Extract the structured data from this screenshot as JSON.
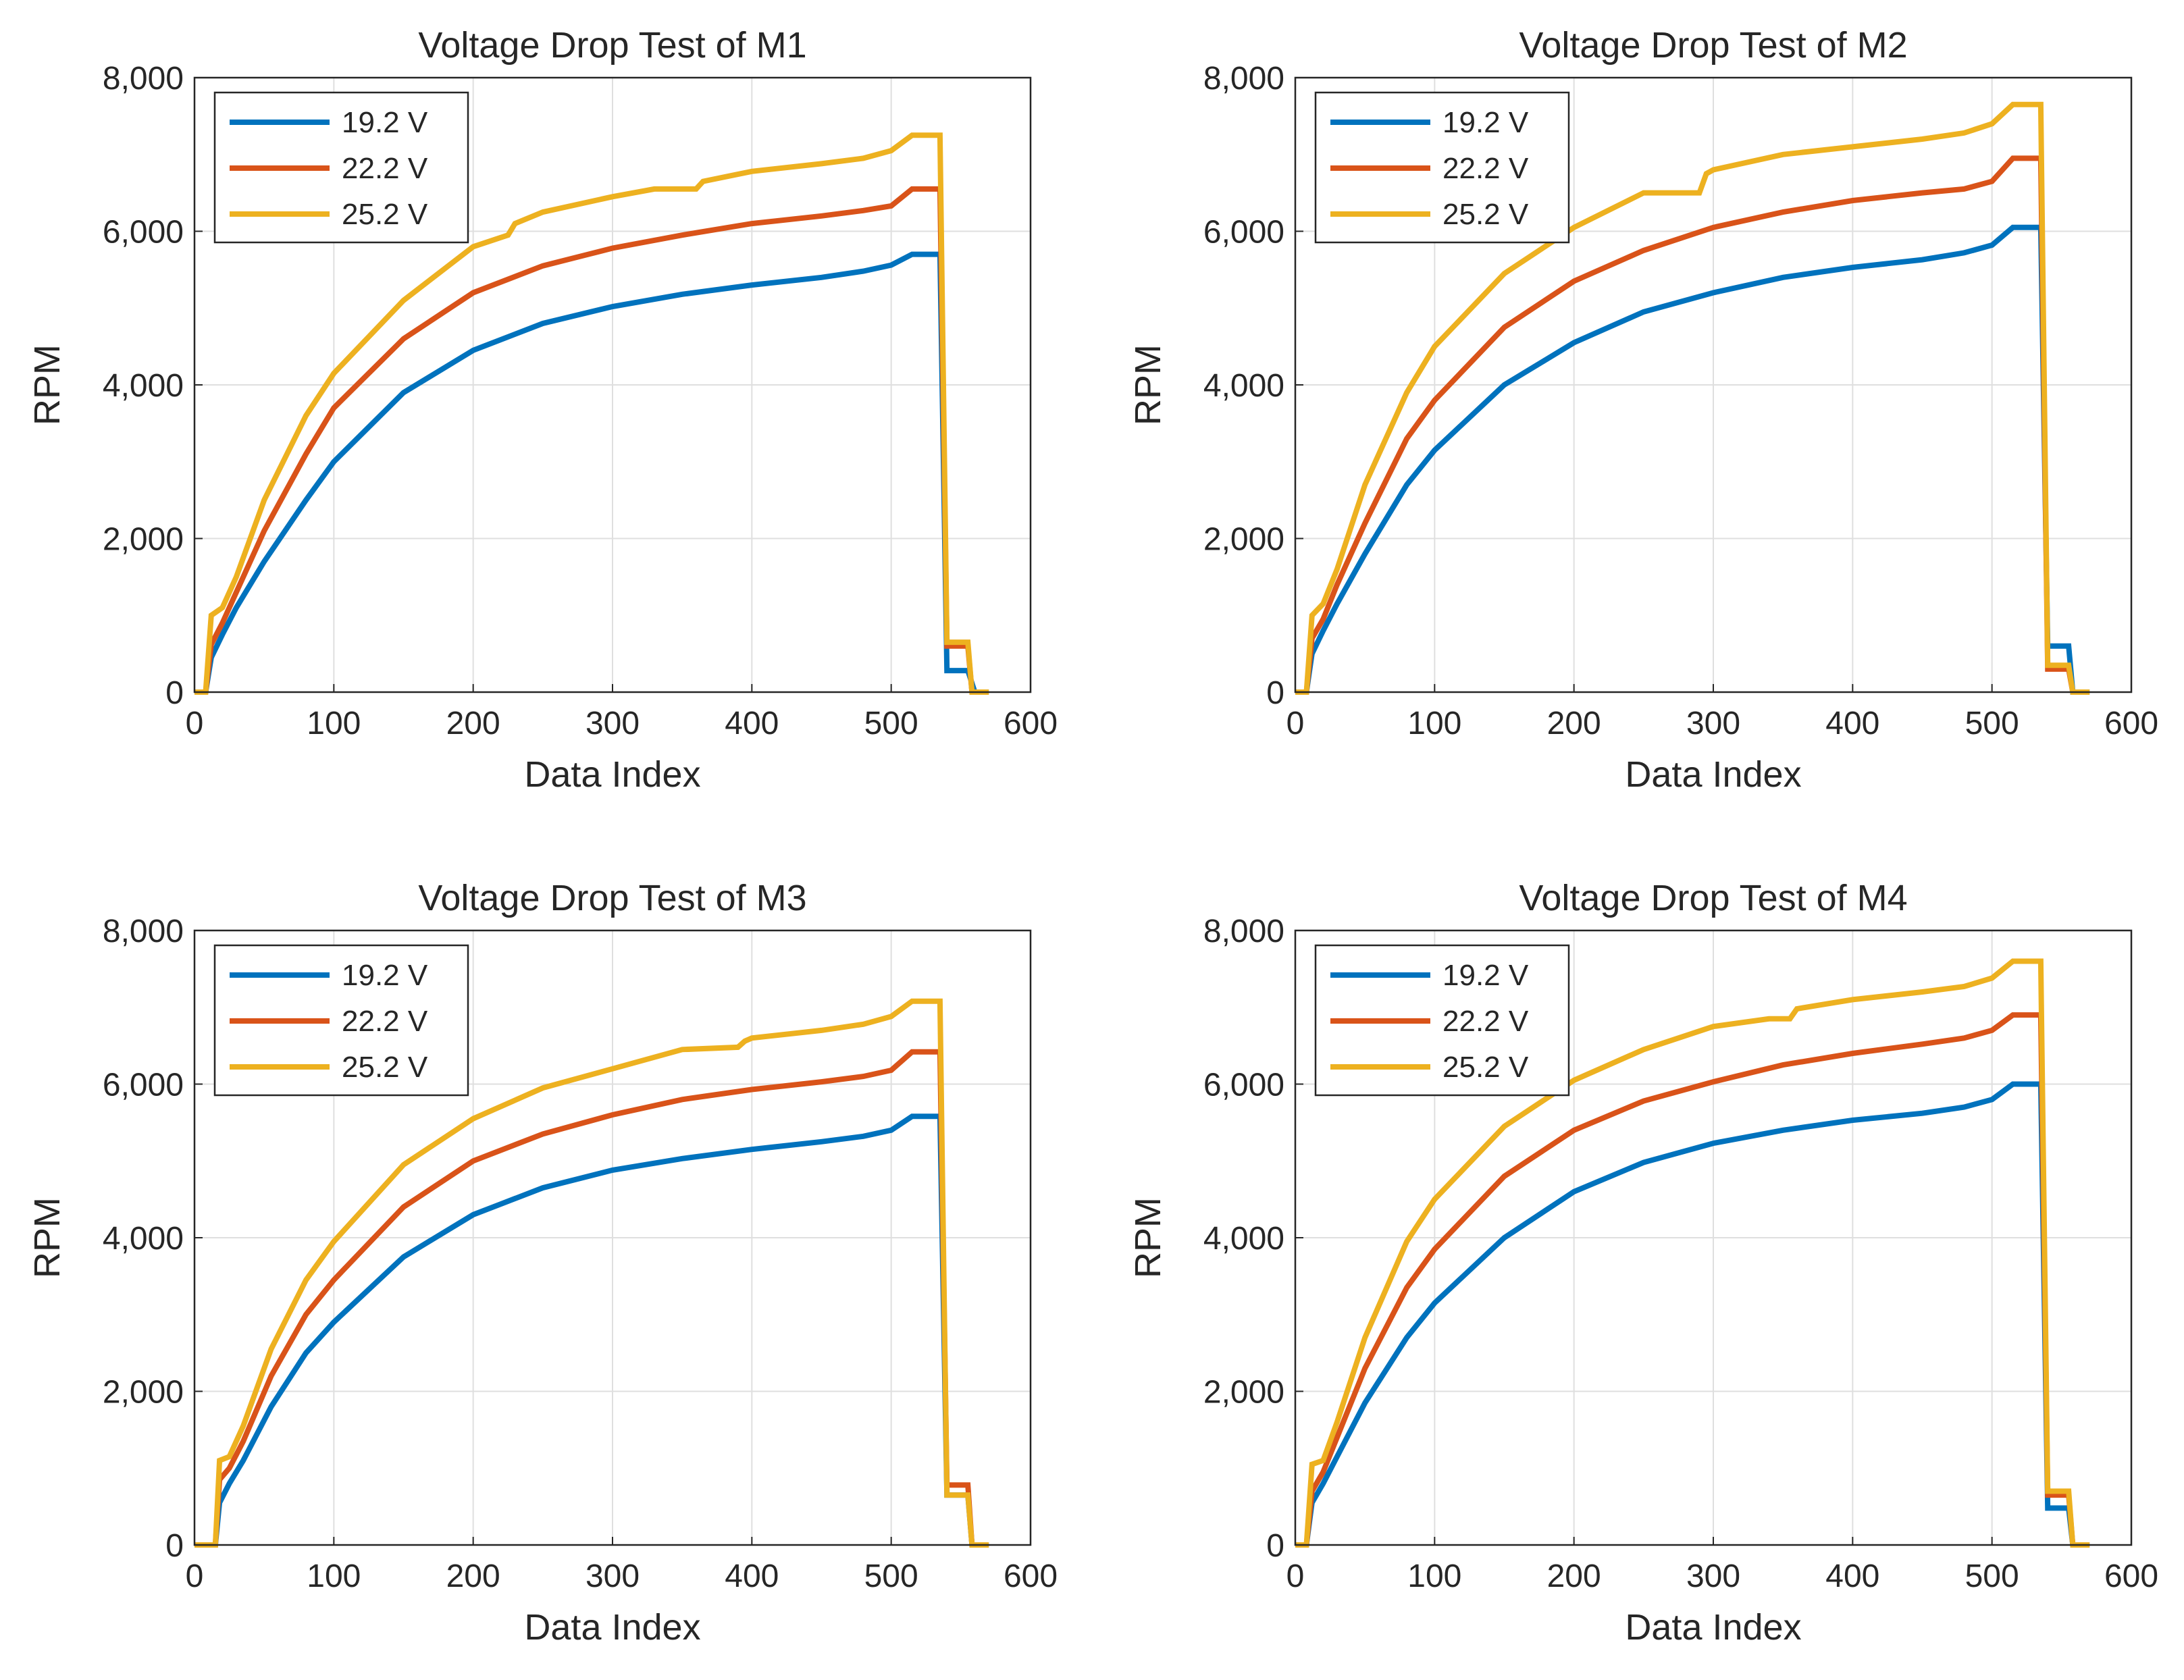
{
  "figure": {
    "colors": [
      "#0072BD",
      "#D95319",
      "#EDB120"
    ],
    "grid": true,
    "legend_placement": "top-left"
  },
  "chart_data": [
    {
      "type": "line",
      "title": "Voltage Drop Test of M1",
      "xlabel": "Data Index",
      "ylabel": "RPM",
      "xlim": [
        0,
        600
      ],
      "ylim": [
        0,
        8000
      ],
      "xticks": [
        "0",
        "100",
        "200",
        "300",
        "400",
        "500",
        "600"
      ],
      "yticks": [
        "0",
        "2,000",
        "4,000",
        "6,000",
        "8,000"
      ],
      "legend_placement": "top-left",
      "series": [
        {
          "name": "19.2 V",
          "color": "#0072BD",
          "x": [
            0,
            8,
            12,
            20,
            30,
            50,
            80,
            100,
            150,
            200,
            250,
            300,
            350,
            400,
            450,
            480,
            500,
            515,
            530,
            535,
            540,
            555,
            560,
            570
          ],
          "y": [
            0,
            0,
            450,
            750,
            1100,
            1700,
            2500,
            3000,
            3900,
            4450,
            4800,
            5020,
            5180,
            5300,
            5400,
            5480,
            5560,
            5700,
            5700,
            5700,
            280,
            280,
            0,
            0
          ]
        },
        {
          "name": "22.2 V",
          "color": "#D95319",
          "x": [
            0,
            8,
            12,
            20,
            30,
            50,
            80,
            100,
            150,
            200,
            250,
            300,
            350,
            400,
            450,
            480,
            500,
            515,
            530,
            535,
            540,
            555,
            558,
            570
          ],
          "y": [
            0,
            0,
            620,
            900,
            1300,
            2100,
            3100,
            3700,
            4600,
            5200,
            5550,
            5780,
            5950,
            6100,
            6200,
            6270,
            6330,
            6550,
            6550,
            6550,
            600,
            600,
            0,
            0
          ]
        },
        {
          "name": "25.2 V",
          "color": "#EDB120",
          "x": [
            0,
            8,
            12,
            20,
            30,
            50,
            80,
            100,
            150,
            200,
            225,
            230,
            250,
            300,
            330,
            360,
            365,
            400,
            450,
            480,
            500,
            515,
            530,
            535,
            540,
            555,
            558,
            570
          ],
          "y": [
            0,
            0,
            1000,
            1100,
            1500,
            2500,
            3600,
            4150,
            5100,
            5800,
            5950,
            6100,
            6250,
            6450,
            6550,
            6550,
            6650,
            6780,
            6880,
            6950,
            7050,
            7250,
            7250,
            7250,
            650,
            650,
            0,
            0
          ]
        }
      ]
    },
    {
      "type": "line",
      "title": "Voltage Drop Test of M2",
      "xlabel": "Data Index",
      "ylabel": "RPM",
      "xlim": [
        0,
        600
      ],
      "ylim": [
        0,
        8000
      ],
      "xticks": [
        "0",
        "100",
        "200",
        "300",
        "400",
        "500",
        "600"
      ],
      "yticks": [
        "0",
        "2,000",
        "4,000",
        "6,000",
        "8,000"
      ],
      "legend_placement": "top-left",
      "series": [
        {
          "name": "19.2 V",
          "color": "#0072BD",
          "x": [
            0,
            8,
            12,
            20,
            30,
            50,
            80,
            100,
            150,
            200,
            250,
            300,
            350,
            400,
            450,
            480,
            500,
            515,
            530,
            535,
            540,
            555,
            558,
            570
          ],
          "y": [
            0,
            0,
            500,
            800,
            1150,
            1800,
            2700,
            3150,
            4000,
            4550,
            4950,
            5200,
            5400,
            5530,
            5630,
            5720,
            5820,
            6050,
            6050,
            6050,
            600,
            600,
            0,
            0
          ]
        },
        {
          "name": "22.2 V",
          "color": "#D95319",
          "x": [
            0,
            8,
            12,
            20,
            30,
            50,
            80,
            100,
            150,
            200,
            250,
            300,
            350,
            400,
            450,
            480,
            500,
            515,
            530,
            535,
            540,
            555,
            558,
            570
          ],
          "y": [
            0,
            0,
            700,
            950,
            1400,
            2200,
            3300,
            3800,
            4750,
            5350,
            5750,
            6050,
            6250,
            6400,
            6500,
            6550,
            6650,
            6950,
            6950,
            6950,
            300,
            300,
            0,
            0
          ]
        },
        {
          "name": "25.2 V",
          "color": "#EDB120",
          "x": [
            0,
            8,
            12,
            20,
            30,
            50,
            80,
            100,
            150,
            200,
            250,
            290,
            295,
            300,
            350,
            400,
            450,
            480,
            500,
            515,
            530,
            535,
            540,
            555,
            558,
            570
          ],
          "y": [
            0,
            0,
            1000,
            1150,
            1600,
            2700,
            3900,
            4500,
            5450,
            6050,
            6500,
            6500,
            6750,
            6800,
            7000,
            7100,
            7200,
            7280,
            7400,
            7650,
            7650,
            7650,
            350,
            350,
            0,
            0
          ]
        }
      ]
    },
    {
      "type": "line",
      "title": "Voltage Drop Test of M3",
      "xlabel": "Data Index",
      "ylabel": "RPM",
      "xlim": [
        0,
        600
      ],
      "ylim": [
        0,
        8000
      ],
      "xticks": [
        "0",
        "100",
        "200",
        "300",
        "400",
        "500",
        "600"
      ],
      "yticks": [
        "0",
        "2,000",
        "4,000",
        "6,000",
        "8,000"
      ],
      "legend_placement": "top-left",
      "series": [
        {
          "name": "19.2 V",
          "color": "#0072BD",
          "x": [
            0,
            15,
            18,
            25,
            35,
            55,
            80,
            100,
            150,
            200,
            250,
            300,
            350,
            400,
            450,
            480,
            500,
            515,
            530,
            535,
            540,
            555,
            558,
            570
          ],
          "y": [
            0,
            0,
            550,
            800,
            1100,
            1800,
            2500,
            2900,
            3750,
            4300,
            4650,
            4880,
            5030,
            5150,
            5250,
            5320,
            5400,
            5580,
            5580,
            5580,
            650,
            650,
            0,
            0
          ]
        },
        {
          "name": "22.2 V",
          "color": "#D95319",
          "x": [
            0,
            15,
            18,
            25,
            35,
            55,
            80,
            100,
            150,
            200,
            250,
            300,
            350,
            400,
            450,
            480,
            500,
            515,
            530,
            535,
            540,
            555,
            558,
            570
          ],
          "y": [
            0,
            0,
            850,
            1000,
            1350,
            2200,
            3000,
            3450,
            4400,
            5000,
            5350,
            5600,
            5800,
            5930,
            6030,
            6100,
            6180,
            6420,
            6420,
            6420,
            780,
            780,
            0,
            0
          ]
        },
        {
          "name": "25.2 V",
          "color": "#EDB120",
          "x": [
            0,
            15,
            18,
            25,
            35,
            55,
            80,
            100,
            150,
            200,
            250,
            300,
            350,
            390,
            395,
            400,
            450,
            480,
            500,
            515,
            530,
            535,
            540,
            555,
            558,
            570
          ],
          "y": [
            0,
            0,
            1100,
            1150,
            1550,
            2550,
            3450,
            3950,
            4950,
            5550,
            5950,
            6200,
            6450,
            6480,
            6560,
            6600,
            6700,
            6780,
            6880,
            7080,
            7080,
            7080,
            650,
            650,
            0,
            0
          ]
        }
      ]
    },
    {
      "type": "line",
      "title": "Voltage Drop Test of M4",
      "xlabel": "Data Index",
      "ylabel": "RPM",
      "xlim": [
        0,
        600
      ],
      "ylim": [
        0,
        8000
      ],
      "xticks": [
        "0",
        "100",
        "200",
        "300",
        "400",
        "500",
        "600"
      ],
      "yticks": [
        "0",
        "2,000",
        "4,000",
        "6,000",
        "8,000"
      ],
      "legend_placement": "top-left",
      "series": [
        {
          "name": "19.2 V",
          "color": "#0072BD",
          "x": [
            0,
            8,
            12,
            20,
            30,
            50,
            80,
            100,
            150,
            200,
            250,
            300,
            350,
            400,
            450,
            480,
            500,
            515,
            530,
            535,
            540,
            555,
            558,
            570
          ],
          "y": [
            0,
            0,
            550,
            800,
            1150,
            1850,
            2700,
            3150,
            4000,
            4600,
            4980,
            5230,
            5400,
            5530,
            5620,
            5700,
            5800,
            6000,
            6000,
            6000,
            480,
            480,
            0,
            0
          ]
        },
        {
          "name": "22.2 V",
          "color": "#D95319",
          "x": [
            0,
            8,
            12,
            20,
            30,
            50,
            80,
            100,
            150,
            200,
            250,
            300,
            350,
            400,
            450,
            480,
            500,
            515,
            530,
            535,
            540,
            555,
            558,
            570
          ],
          "y": [
            0,
            0,
            700,
            950,
            1400,
            2300,
            3350,
            3850,
            4800,
            5400,
            5780,
            6030,
            6250,
            6400,
            6520,
            6600,
            6700,
            6900,
            6900,
            6900,
            650,
            650,
            0,
            0
          ]
        },
        {
          "name": "25.2 V",
          "color": "#EDB120",
          "x": [
            0,
            8,
            12,
            20,
            30,
            50,
            80,
            100,
            150,
            200,
            250,
            300,
            340,
            355,
            360,
            400,
            450,
            480,
            500,
            515,
            530,
            535,
            540,
            555,
            558,
            570
          ],
          "y": [
            0,
            0,
            1050,
            1100,
            1600,
            2700,
            3950,
            4500,
            5450,
            6050,
            6450,
            6750,
            6850,
            6850,
            6980,
            7100,
            7200,
            7270,
            7380,
            7600,
            7600,
            7600,
            700,
            700,
            0,
            0
          ]
        }
      ]
    }
  ]
}
